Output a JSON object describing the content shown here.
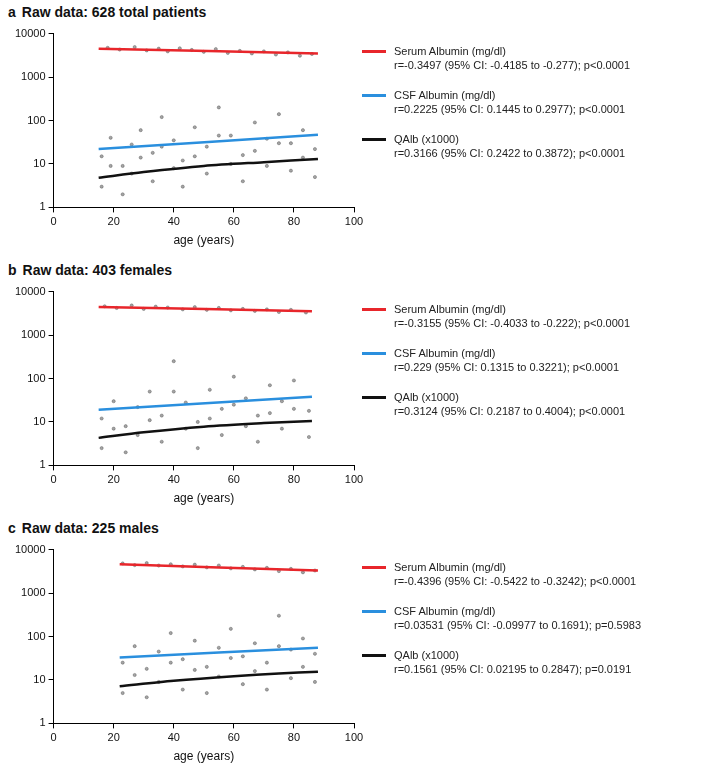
{
  "chart_data": [
    {
      "type": "scatter",
      "panel": "a",
      "title": "Raw data: 628 total patients",
      "x_label": "age (years)",
      "log": "y",
      "grid": false,
      "xlim": [
        0,
        100
      ],
      "xticks": [
        0,
        20,
        40,
        60,
        80,
        100
      ],
      "ylim": [
        1,
        10000
      ],
      "yticks": [
        1,
        10,
        100,
        1000,
        10000
      ],
      "series": [
        {
          "name": "Serum Albumin (mg/dl)",
          "color": "#e8262b",
          "annotation": "r=-0.3497 (95% CI: -0.4185 to -0.277); p<0.0001",
          "x": [
            18,
            22,
            27,
            31,
            35,
            38,
            42,
            46,
            50,
            54,
            58,
            62,
            66,
            70,
            74,
            78,
            82,
            86
          ],
          "values": [
            4700,
            4300,
            4900,
            4100,
            4500,
            3900,
            4600,
            4200,
            3800,
            4400,
            3600,
            4000,
            3500,
            3900,
            3300,
            3700,
            3100,
            3400
          ],
          "fit_x": [
            15,
            88
          ],
          "fit_values": [
            4500,
            3500
          ]
        },
        {
          "name": "CSF Albumin (mg/dl)",
          "color": "#2a8fde",
          "annotation": "r=0.2225 (95% CI: 0.1445 to 0.2977); p<0.0001",
          "x": [
            16,
            19,
            23,
            26,
            29,
            33,
            36,
            40,
            43,
            47,
            51,
            55,
            59,
            63,
            67,
            71,
            75,
            79,
            83,
            87
          ],
          "values": [
            15,
            40,
            9,
            28,
            60,
            18,
            120,
            35,
            12,
            70,
            25,
            200,
            45,
            16,
            90,
            38,
            140,
            30,
            60,
            22
          ],
          "fit_x": [
            15,
            88
          ],
          "fit_values": [
            22,
            47
          ]
        },
        {
          "name": "QAlb (x1000)",
          "color": "#111111",
          "annotation": "r=0.3166 (95% CI: 0.2422 to 0.3872); p<0.0001",
          "x": [
            16,
            19,
            23,
            26,
            29,
            33,
            36,
            40,
            43,
            47,
            51,
            55,
            59,
            63,
            67,
            71,
            75,
            79,
            83,
            87
          ],
          "values": [
            3,
            9,
            2,
            6,
            14,
            4,
            25,
            8,
            3,
            15,
            6,
            45,
            10,
            4,
            20,
            9,
            30,
            7,
            14,
            5
          ],
          "fit_x": [
            15,
            30,
            50,
            70,
            88
          ],
          "fit_values": [
            4.8,
            6.5,
            9,
            11,
            13
          ]
        }
      ]
    },
    {
      "type": "scatter",
      "panel": "b",
      "title": "Raw data: 403 females",
      "x_label": "age (years)",
      "log": "y",
      "grid": false,
      "xlim": [
        0,
        100
      ],
      "xticks": [
        0,
        20,
        40,
        60,
        80,
        100
      ],
      "ylim": [
        1,
        10000
      ],
      "yticks": [
        1,
        10,
        100,
        1000,
        10000
      ],
      "series": [
        {
          "name": "Serum Albumin (mg/dl)",
          "color": "#e8262b",
          "annotation": "r=-0.3155 (95% CI: -0.4033 to -0.222); p<0.0001",
          "x": [
            17,
            21,
            26,
            30,
            34,
            38,
            43,
            47,
            51,
            55,
            59,
            63,
            67,
            71,
            75,
            79,
            84
          ],
          "values": [
            4600,
            4200,
            4800,
            4000,
            4500,
            4300,
            3900,
            4400,
            3800,
            4200,
            3700,
            4000,
            3600,
            3900,
            3400,
            3800,
            3300
          ],
          "fit_x": [
            15,
            86
          ],
          "fit_values": [
            4400,
            3550
          ]
        },
        {
          "name": "CSF Albumin (mg/dl)",
          "color": "#2a8fde",
          "annotation": "r=0.229 (95% CI: 0.1315 to 0.3221); p<0.0001",
          "x": [
            16,
            20,
            24,
            28,
            32,
            36,
            40,
            44,
            48,
            52,
            56,
            60,
            64,
            68,
            72,
            76,
            80,
            85
          ],
          "values": [
            12,
            30,
            8,
            22,
            50,
            14,
            250,
            28,
            10,
            55,
            20,
            110,
            35,
            14,
            70,
            30,
            90,
            18
          ],
          "fit_x": [
            15,
            86
          ],
          "fit_values": [
            19,
            38
          ]
        },
        {
          "name": "QAlb (x1000)",
          "color": "#111111",
          "annotation": "r=0.3124 (95% CI: 0.2187 to 0.4004); p<0.0001",
          "x": [
            16,
            20,
            24,
            28,
            32,
            36,
            40,
            44,
            48,
            52,
            56,
            60,
            64,
            68,
            72,
            76,
            80,
            85
          ],
          "values": [
            2.5,
            7,
            2,
            5,
            11,
            3.5,
            50,
            7,
            2.5,
            12,
            5,
            25,
            8,
            3.5,
            16,
            7,
            20,
            4.5
          ],
          "fit_x": [
            15,
            30,
            50,
            70,
            86
          ],
          "fit_values": [
            4.3,
            5.8,
            7.8,
            9.4,
            10.5
          ]
        }
      ]
    },
    {
      "type": "scatter",
      "panel": "c",
      "title": "Raw data: 225 males",
      "x_label": "age (years)",
      "log": "y",
      "grid": false,
      "xlim": [
        0,
        100
      ],
      "xticks": [
        0,
        20,
        40,
        60,
        80,
        100
      ],
      "ylim": [
        1,
        10000
      ],
      "yticks": [
        1,
        10,
        100,
        1000,
        10000
      ],
      "series": [
        {
          "name": "Serum Albumin (mg/dl)",
          "color": "#e8262b",
          "annotation": "r=-0.4396 (95% CI: -0.5422 to -0.3242); p<0.0001",
          "x": [
            23,
            27,
            31,
            35,
            39,
            43,
            47,
            51,
            55,
            59,
            63,
            67,
            71,
            75,
            79,
            83,
            87
          ],
          "values": [
            4800,
            4400,
            4900,
            4300,
            4600,
            4100,
            4500,
            3900,
            4300,
            3700,
            4000,
            3500,
            3800,
            3200,
            3600,
            3000,
            3300
          ],
          "fit_x": [
            22,
            88
          ],
          "fit_values": [
            4600,
            3300
          ]
        },
        {
          "name": "CSF Albumin (mg/dl)",
          "color": "#2a8fde",
          "annotation": "r=0.03531 (95% CI: -0.09977 to 0.1691); p=0.5983",
          "x": [
            23,
            27,
            31,
            35,
            39,
            43,
            47,
            51,
            55,
            59,
            63,
            67,
            71,
            75,
            79,
            83,
            87
          ],
          "values": [
            25,
            60,
            18,
            45,
            120,
            30,
            80,
            20,
            55,
            150,
            35,
            70,
            25,
            300,
            50,
            90,
            40
          ],
          "fit_x": [
            22,
            88
          ],
          "fit_values": [
            33,
            55
          ]
        },
        {
          "name": "QAlb (x1000)",
          "color": "#111111",
          "annotation": "r=0.1561 (95% CI: 0.02195 to 0.2847); p=0.0191",
          "x": [
            23,
            27,
            31,
            35,
            39,
            43,
            47,
            51,
            55,
            59,
            63,
            67,
            71,
            75,
            79,
            83,
            87
          ],
          "values": [
            5,
            13,
            4,
            9,
            25,
            6,
            17,
            5,
            12,
            32,
            8,
            16,
            6,
            60,
            11,
            20,
            9
          ],
          "fit_x": [
            22,
            40,
            60,
            75,
            88
          ],
          "fit_values": [
            7.2,
            9.6,
            12.2,
            14,
            15.5
          ]
        }
      ]
    }
  ]
}
